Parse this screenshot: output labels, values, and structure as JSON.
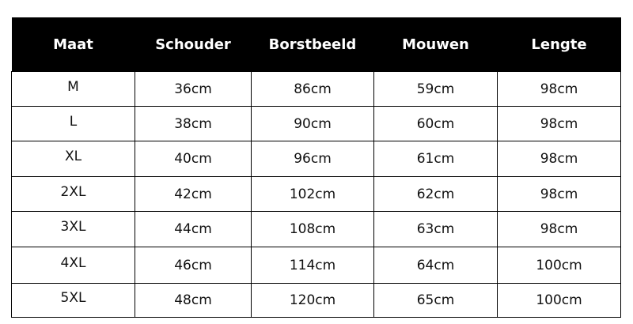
{
  "headers": [
    "Maat",
    "Schouder",
    "Borstbeeld",
    "Mouwen",
    "Lengte"
  ],
  "rows": [
    [
      "M",
      "36cm",
      "86cm",
      "59cm",
      "98cm"
    ],
    [
      "L",
      "38cm",
      "90cm",
      "60cm",
      "98cm"
    ],
    [
      "XL",
      "40cm",
      "96cm",
      "61cm",
      "98cm"
    ],
    [
      "2XL",
      "42cm",
      "102cm",
      "62cm",
      "98cm"
    ],
    [
      "3XL",
      "44cm",
      "108cm",
      "63cm",
      "98cm"
    ],
    [
      "4XL",
      "46cm",
      "114cm",
      "64cm",
      "100cm"
    ],
    [
      "5XL",
      "48cm",
      "120cm",
      "65cm",
      "100cm"
    ]
  ],
  "colors": {
    "header_bg": "#000000",
    "header_text": "#ffffff"
  }
}
